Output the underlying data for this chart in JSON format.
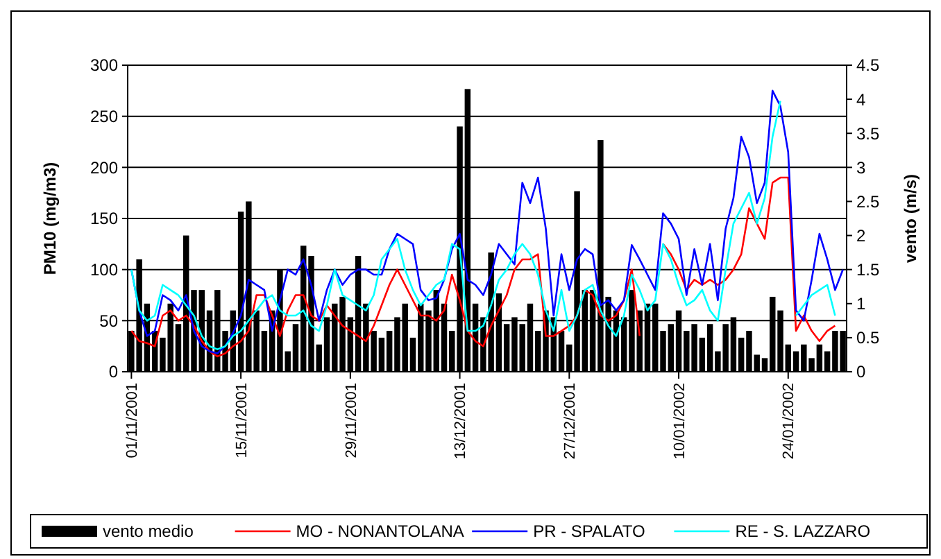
{
  "chart_data": {
    "type": "line",
    "ylabel": "PM10 (mg/m3)",
    "y2label": "vento (m/s)",
    "categories": [
      "01/11/2001",
      null,
      null,
      null,
      null,
      null,
      null,
      null,
      null,
      null,
      null,
      null,
      null,
      null,
      "15/11/2001",
      null,
      null,
      null,
      null,
      null,
      null,
      null,
      null,
      null,
      null,
      null,
      null,
      null,
      "29/11/2001",
      null,
      null,
      null,
      null,
      null,
      null,
      null,
      null,
      null,
      null,
      null,
      null,
      null,
      "13/12/2001",
      null,
      null,
      null,
      null,
      null,
      null,
      null,
      null,
      null,
      null,
      null,
      null,
      null,
      "27/12/2001",
      null,
      null,
      null,
      null,
      null,
      null,
      null,
      null,
      null,
      null,
      null,
      null,
      null,
      "10/01/2002",
      null,
      null,
      null,
      null,
      null,
      null,
      null,
      null,
      null,
      null,
      null,
      null,
      null,
      "24/01/2002",
      null,
      null,
      null,
      null,
      null,
      null,
      null
    ],
    "ylim": [
      0,
      300
    ],
    "yticks": [
      0,
      50,
      100,
      150,
      200,
      250,
      300
    ],
    "y2lim": [
      0,
      4.5
    ],
    "y2ticks": [
      0,
      0.5,
      1,
      1.5,
      2,
      2.5,
      3,
      3.5,
      4,
      4.5
    ],
    "grid": "y",
    "legend": "bottom",
    "series": [
      {
        "name": "vento medio",
        "type": "bar",
        "axis": "y2",
        "color": "#000000",
        "values": [
          0.6,
          1.65,
          1.0,
          0.6,
          0.5,
          1.0,
          0.7,
          2.0,
          1.2,
          1.2,
          0.9,
          1.2,
          0.6,
          0.9,
          2.35,
          2.5,
          0.9,
          0.6,
          0.9,
          1.5,
          0.3,
          0.7,
          1.85,
          1.7,
          0.4,
          0.8,
          1.0,
          1.1,
          0.8,
          1.7,
          1.0,
          0.6,
          0.5,
          0.6,
          0.8,
          1.0,
          0.5,
          1.0,
          0.9,
          1.2,
          1.0,
          0.6,
          3.6,
          4.15,
          1.0,
          0.8,
          1.75,
          1.15,
          0.7,
          0.8,
          0.7,
          1.0,
          0.6,
          0.9,
          0.8,
          0.6,
          0.4,
          2.65,
          1.2,
          1.2,
          3.4,
          1.1,
          0.9,
          0.8,
          1.2,
          0.9,
          1.0,
          1.0,
          0.6,
          0.7,
          0.9,
          0.6,
          0.7,
          0.5,
          0.7,
          0.3,
          0.7,
          0.8,
          0.5,
          0.6,
          0.25,
          0.2,
          1.1,
          0.9,
          0.4,
          0.3,
          0.4,
          0.2,
          0.4,
          0.3,
          0.6,
          0.6
        ]
      },
      {
        "name": "MO - NONANTOLANA",
        "color": "#ff0000",
        "values": [
          40,
          30,
          28,
          25,
          55,
          60,
          50,
          55,
          45,
          30,
          20,
          15,
          18,
          25,
          30,
          40,
          75,
          75,
          55,
          35,
          60,
          75,
          75,
          55,
          50,
          65,
          55,
          45,
          40,
          35,
          30,
          45,
          65,
          85,
          100,
          85,
          70,
          55,
          55,
          50,
          60,
          95,
          70,
          40,
          30,
          25,
          45,
          60,
          75,
          100,
          110,
          110,
          115,
          35,
          35,
          40,
          45,
          55,
          80,
          75,
          55,
          50,
          55,
          70,
          100,
          35,
          null,
          null,
          125,
          115,
          100,
          80,
          90,
          85,
          90,
          85,
          90,
          100,
          115,
          160,
          145,
          130,
          185,
          190,
          190,
          40,
          55,
          40,
          30,
          40,
          45,
          null
        ]
      },
      {
        "name": "PR - SPALATO",
        "color": "#0000ff",
        "values": [
          100,
          60,
          35,
          40,
          75,
          70,
          60,
          75,
          40,
          25,
          20,
          18,
          25,
          38,
          55,
          90,
          85,
          80,
          40,
          70,
          100,
          95,
          110,
          85,
          50,
          80,
          100,
          85,
          95,
          100,
          100,
          95,
          95,
          120,
          135,
          130,
          125,
          80,
          70,
          72,
          90,
          120,
          135,
          90,
          85,
          75,
          95,
          125,
          115,
          105,
          185,
          165,
          190,
          140,
          55,
          115,
          80,
          110,
          120,
          115,
          65,
          70,
          60,
          70,
          124,
          110,
          95,
          80,
          155,
          145,
          130,
          75,
          120,
          85,
          125,
          70,
          140,
          170,
          230,
          210,
          165,
          185,
          275,
          260,
          215,
          60,
          50,
          90,
          135,
          110,
          80,
          100
        ]
      },
      {
        "name": "RE - S. LAZZARO",
        "color": "#00ffff",
        "values": [
          100,
          60,
          50,
          55,
          85,
          80,
          75,
          65,
          55,
          35,
          25,
          22,
          25,
          35,
          40,
          50,
          60,
          70,
          75,
          60,
          55,
          55,
          60,
          45,
          40,
          65,
          100,
          75,
          70,
          65,
          60,
          75,
          110,
          120,
          130,
          100,
          80,
          65,
          75,
          85,
          90,
          125,
          120,
          40,
          40,
          45,
          65,
          90,
          100,
          115,
          125,
          115,
          95,
          60,
          40,
          80,
          40,
          55,
          80,
          85,
          60,
          45,
          35,
          55,
          95,
          80,
          60,
          70,
          125,
          110,
          85,
          65,
          70,
          80,
          60,
          50,
          100,
          145,
          160,
          175,
          145,
          170,
          230,
          265,
          null,
          55,
          65,
          75,
          80,
          85,
          55,
          null
        ]
      }
    ]
  }
}
